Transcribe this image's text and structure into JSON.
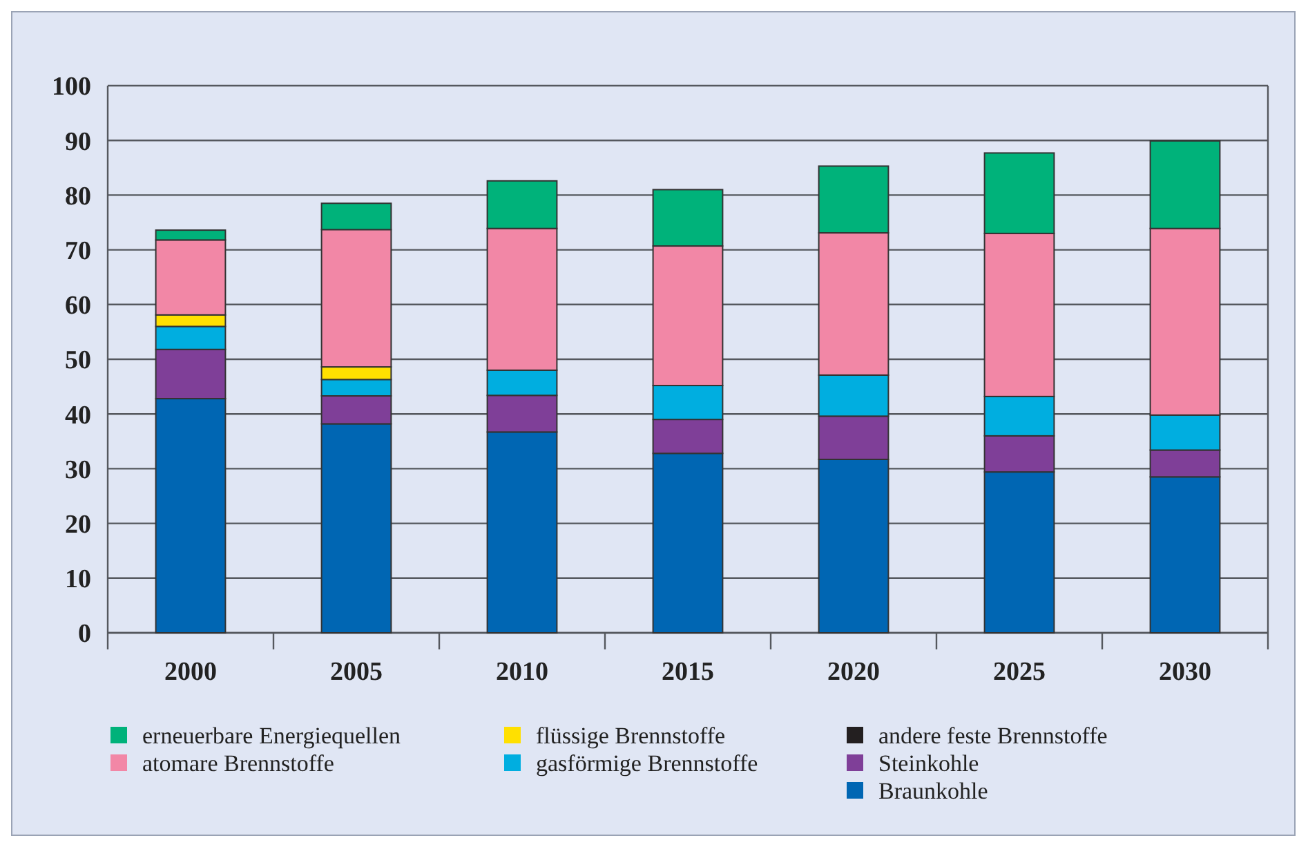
{
  "chart_data": {
    "type": "bar",
    "stacked": true,
    "categories": [
      "2000",
      "2005",
      "2010",
      "2015",
      "2020",
      "2025",
      "2030"
    ],
    "ylim": [
      0,
      100
    ],
    "yticks": [
      0,
      10,
      20,
      30,
      40,
      50,
      60,
      70,
      80,
      90,
      100
    ],
    "grid": "y",
    "legend": "bottom",
    "series": [
      {
        "name": "Braunkohle",
        "color": "#0066b3",
        "values": [
          42.8,
          38.2,
          36.7,
          32.8,
          31.7,
          29.4,
          28.5
        ]
      },
      {
        "name": "Steinkohle",
        "color": "#7f3f98",
        "values": [
          9.0,
          5.1,
          6.7,
          6.2,
          7.9,
          6.6,
          4.9
        ]
      },
      {
        "name": "andere feste Brennstoffe",
        "color": "#231f20",
        "values": [
          0,
          0,
          0,
          0,
          0,
          0,
          0
        ]
      },
      {
        "name": "gasförmige Brennstoffe",
        "color": "#00aee0",
        "values": [
          4.2,
          3.0,
          4.6,
          6.2,
          7.5,
          7.2,
          6.4
        ]
      },
      {
        "name": "flüssige Brennstoffe",
        "color": "#ffe000",
        "values": [
          2.1,
          2.3,
          0,
          0,
          0,
          0,
          0
        ]
      },
      {
        "name": "atomare Brennstoffe",
        "color": "#f287a6",
        "values": [
          13.7,
          25.1,
          25.9,
          25.5,
          26.0,
          29.8,
          34.1
        ]
      },
      {
        "name": "erneuerbare Energiequellen",
        "color": "#00b27a",
        "values": [
          1.8,
          4.8,
          8.7,
          10.3,
          12.2,
          14.7,
          16.0
        ]
      }
    ]
  }
}
